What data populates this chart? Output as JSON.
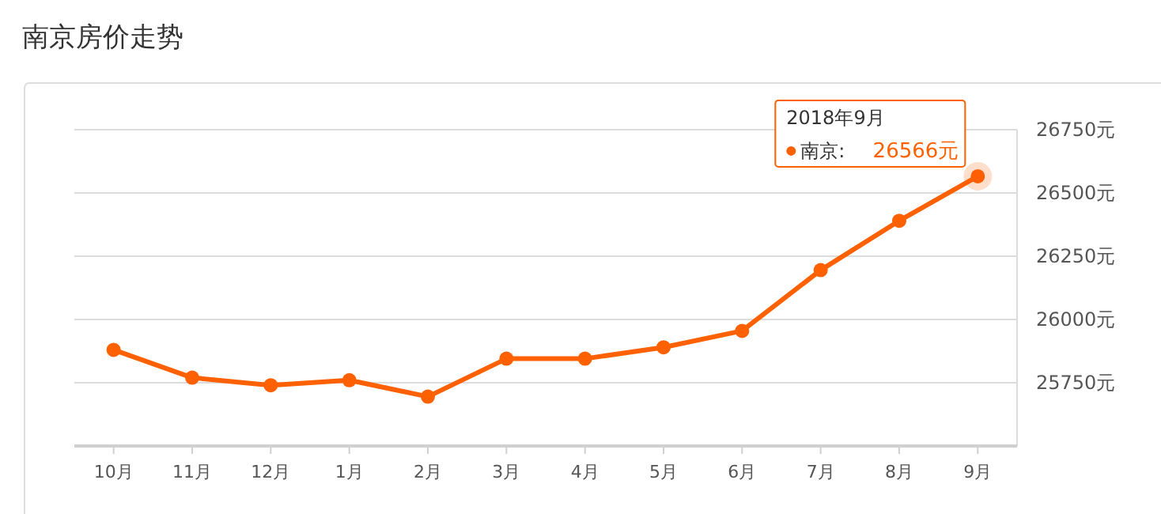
{
  "chart_data": {
    "type": "line",
    "title": "南京房价走势",
    "categories": [
      "10月",
      "11月",
      "12月",
      "1月",
      "2月",
      "3月",
      "4月",
      "5月",
      "6月",
      "7月",
      "8月",
      "9月"
    ],
    "series": [
      {
        "name": "南京",
        "color": "#ff6000",
        "values": [
          25880,
          25770,
          25740,
          25760,
          25695,
          25845,
          25845,
          25890,
          25955,
          26195,
          26390,
          26566
        ],
        "value_labels": [
          null,
          null,
          null,
          null,
          null,
          null,
          null,
          null,
          null,
          null,
          null,
          "26566元"
        ]
      }
    ],
    "ylim": [
      25500,
      26750
    ],
    "yticks": [
      {
        "value": 25750,
        "label": "25750元"
      },
      {
        "value": 26000,
        "label": "26000元"
      },
      {
        "value": 26250,
        "label": "26250元"
      },
      {
        "value": 26500,
        "label": "26500元"
      },
      {
        "value": 26750,
        "label": "26750元"
      }
    ],
    "grid": "y",
    "marker": "circle",
    "line_style": "solid",
    "annotations": [
      "2018年9月",
      ":"
    ]
  }
}
